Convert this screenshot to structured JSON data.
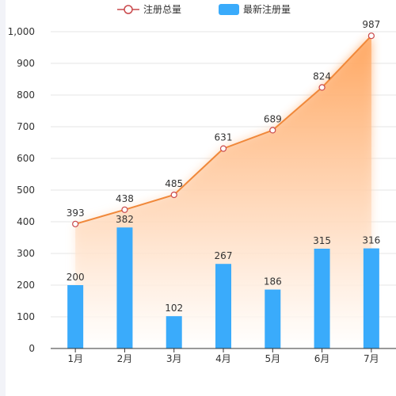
{
  "chart_data": {
    "type": "bar+line",
    "categories": [
      "1月",
      "2月",
      "3月",
      "4月",
      "5月",
      "6月",
      "7月"
    ],
    "series": [
      {
        "name": "注册总量",
        "type": "line-area",
        "values": [
          393,
          438,
          485,
          631,
          689,
          824,
          987
        ]
      },
      {
        "name": "最新注册量",
        "type": "bar",
        "values": [
          200,
          382,
          102,
          267,
          186,
          315,
          316
        ]
      }
    ],
    "ylim": [
      0,
      1000
    ],
    "yticks": [
      "0",
      "100",
      "200",
      "300",
      "400",
      "500",
      "600",
      "700",
      "800",
      "900",
      "1,000"
    ],
    "grid": true,
    "legend_position": "top-center"
  },
  "colors": {
    "line": "#f0883a",
    "area_top": "#ffa45c",
    "area_bottom": "#ffffff",
    "bar": "#3aabfb",
    "marker_stroke": "#c9484b",
    "grid": "#e6e6e6",
    "axis": "#333333"
  }
}
